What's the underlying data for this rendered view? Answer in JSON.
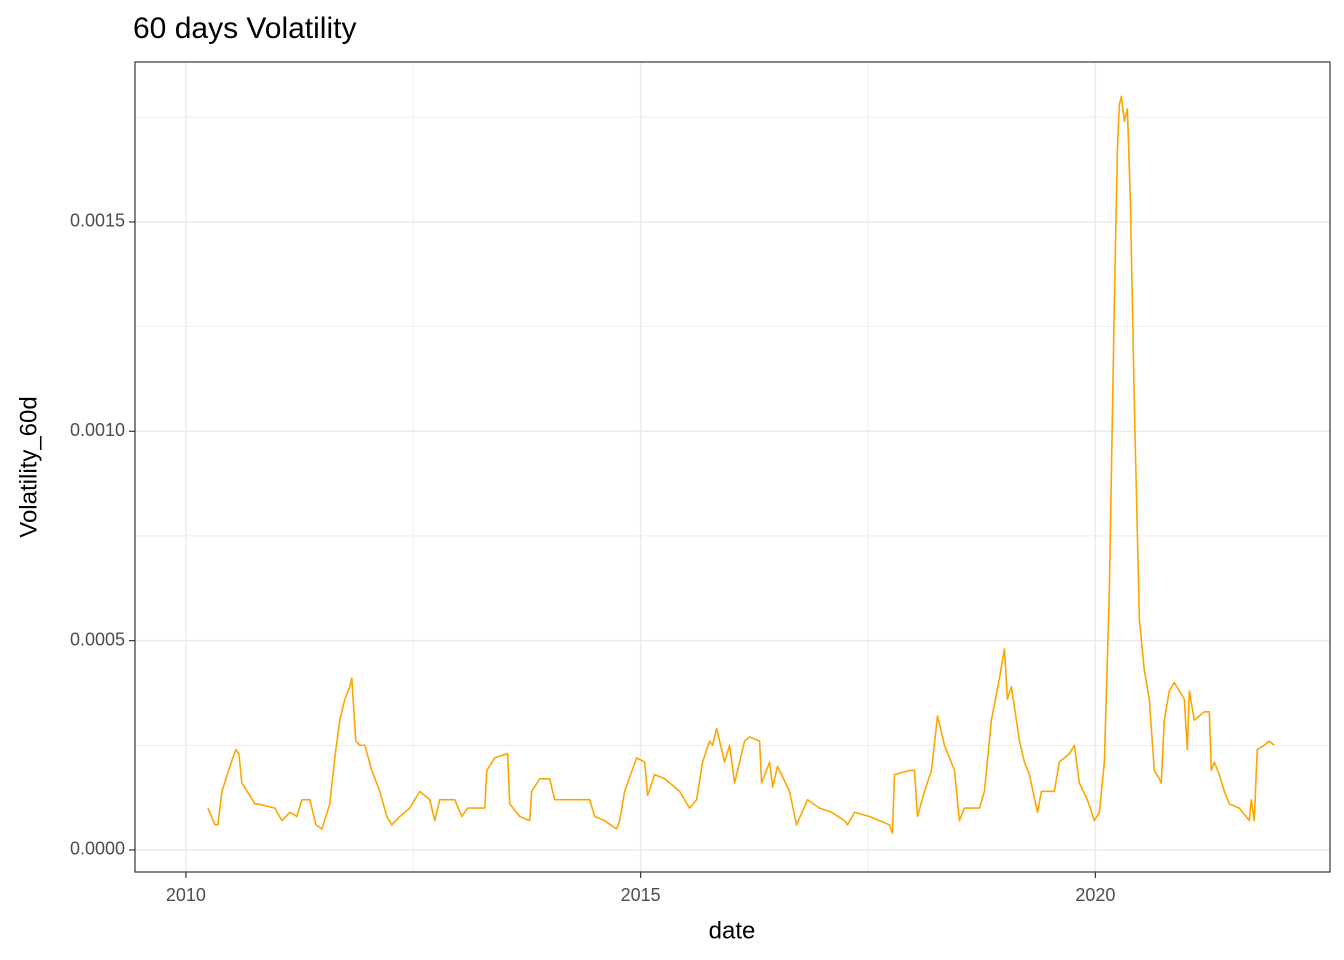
{
  "chart_data": {
    "type": "line",
    "title": "60 days Volatility",
    "x_label": "date",
    "y_label": "Volatility_60d",
    "color": "#FFA500",
    "xlim": [
      2009.44,
      2022.58
    ],
    "ylim": [
      -5.26e-05,
      0.001882
    ],
    "xticks": [
      2010,
      2015,
      2020
    ],
    "yticks": [
      {
        "value": 0,
        "label": "0.0000"
      },
      {
        "value": 0.0005,
        "label": "0.0005"
      },
      {
        "value": 0.001,
        "label": "0.0010"
      },
      {
        "value": 0.0015,
        "label": "0.0015"
      }
    ],
    "minor_xticks": [
      2012.5,
      2017.5
    ],
    "minor_yticks": [
      0.00025,
      0.00075,
      0.00125,
      0.00175
    ],
    "grid": true,
    "x": [
      2010.242,
      2010.319,
      2010.352,
      2010.396,
      2010.484,
      2010.549,
      2010.582,
      2010.615,
      2010.703,
      2010.758,
      2010.791,
      2010.978,
      2011.055,
      2011.143,
      2011.22,
      2011.275,
      2011.363,
      2011.429,
      2011.495,
      2011.582,
      2011.637,
      2011.692,
      2011.747,
      2011.802,
      2011.824,
      2011.868,
      2011.912,
      2011.967,
      2012.044,
      2012.132,
      2012.209,
      2012.264,
      2012.352,
      2012.462,
      2012.571,
      2012.681,
      2012.736,
      2012.791,
      2012.956,
      2013.033,
      2013.099,
      2013.286,
      2013.308,
      2013.396,
      2013.538,
      2013.56,
      2013.67,
      2013.78,
      2013.802,
      2013.89,
      2014.0,
      2014.055,
      2014.165,
      2014.33,
      2014.44,
      2014.495,
      2014.604,
      2014.736,
      2014.769,
      2014.824,
      2014.956,
      2015.044,
      2015.077,
      2015.154,
      2015.264,
      2015.429,
      2015.538,
      2015.615,
      2015.681,
      2015.758,
      2015.791,
      2015.835,
      2015.923,
      2015.978,
      2016.033,
      2016.088,
      2016.143,
      2016.198,
      2016.308,
      2016.33,
      2016.418,
      2016.451,
      2016.505,
      2016.637,
      2016.714,
      2016.835,
      2016.967,
      2017.099,
      2017.242,
      2017.275,
      2017.352,
      2017.516,
      2017.626,
      2017.736,
      2017.769,
      2017.791,
      2017.956,
      2018.011,
      2018.044,
      2018.121,
      2018.198,
      2018.264,
      2018.341,
      2018.451,
      2018.505,
      2018.56,
      2018.725,
      2018.78,
      2018.857,
      2018.945,
      2019.0,
      2019.033,
      2019.077,
      2019.165,
      2019.22,
      2019.275,
      2019.363,
      2019.407,
      2019.549,
      2019.604,
      2019.659,
      2019.714,
      2019.769,
      2019.824,
      2019.912,
      2019.989,
      2020.044,
      2020.099,
      2020.154,
      2020.209,
      2020.242,
      2020.264,
      2020.286,
      2020.319,
      2020.352,
      2020.385,
      2020.429,
      2020.484,
      2020.538,
      2020.593,
      2020.648,
      2020.703,
      2020.725,
      2020.758,
      2020.813,
      2020.868,
      2020.923,
      2020.978,
      2021.011,
      2021.033,
      2021.088,
      2021.143,
      2021.198,
      2021.253,
      2021.275,
      2021.308,
      2021.363,
      2021.418,
      2021.473,
      2021.582,
      2021.692,
      2021.714,
      2021.747,
      2021.78,
      2021.857,
      2021.912,
      2021.967
    ],
    "values": [
      0.0001,
      6e-05,
      6e-05,
      0.00014,
      0.0002,
      0.00024,
      0.00023,
      0.00016,
      0.00013,
      0.00011,
      0.00011,
      0.0001,
      7e-05,
      9e-05,
      8e-05,
      0.00012,
      0.00012,
      6e-05,
      5e-05,
      0.00011,
      0.00022,
      0.00031,
      0.00036,
      0.00039,
      0.00041,
      0.00026,
      0.00025,
      0.00025,
      0.00019,
      0.00014,
      8e-05,
      6e-05,
      8e-05,
      0.0001,
      0.00014,
      0.00012,
      7e-05,
      0.00012,
      0.00012,
      8e-05,
      0.0001,
      0.0001,
      0.00019,
      0.00022,
      0.00023,
      0.00011,
      8e-05,
      7e-05,
      0.00014,
      0.00017,
      0.00017,
      0.00012,
      0.00012,
      0.00012,
      0.00012,
      8e-05,
      7e-05,
      5e-05,
      7e-05,
      0.00014,
      0.00022,
      0.00021,
      0.00013,
      0.00018,
      0.00017,
      0.00014,
      0.0001,
      0.00012,
      0.00021,
      0.00026,
      0.00025,
      0.00029,
      0.00021,
      0.00025,
      0.00016,
      0.00021,
      0.00026,
      0.00027,
      0.00026,
      0.00016,
      0.00021,
      0.00015,
      0.0002,
      0.00014,
      6e-05,
      0.00012,
      0.0001,
      9e-05,
      7e-05,
      6e-05,
      9e-05,
      8e-05,
      7e-05,
      6e-05,
      4e-05,
      0.00018,
      0.00019,
      0.00019,
      8e-05,
      0.00014,
      0.00019,
      0.00032,
      0.00025,
      0.00019,
      7e-05,
      0.0001,
      0.0001,
      0.00014,
      0.00031,
      0.00041,
      0.00048,
      0.00036,
      0.00039,
      0.00026,
      0.00021,
      0.00018,
      9e-05,
      0.00014,
      0.00014,
      0.00021,
      0.00022,
      0.00023,
      0.00025,
      0.00016,
      0.00012,
      7e-05,
      9e-05,
      0.00021,
      0.00062,
      0.00131,
      0.00167,
      0.00178,
      0.0018,
      0.00174,
      0.00177,
      0.00155,
      0.00106,
      0.00055,
      0.00043,
      0.00036,
      0.00019,
      0.00017,
      0.00016,
      0.00031,
      0.00038,
      0.0004,
      0.00038,
      0.00036,
      0.00024,
      0.00038,
      0.00031,
      0.00032,
      0.00033,
      0.00033,
      0.00019,
      0.00021,
      0.00018,
      0.00014,
      0.00011,
      0.0001,
      7e-05,
      0.00012,
      7e-05,
      0.00024,
      0.00025,
      0.00026,
      0.00025
    ]
  }
}
